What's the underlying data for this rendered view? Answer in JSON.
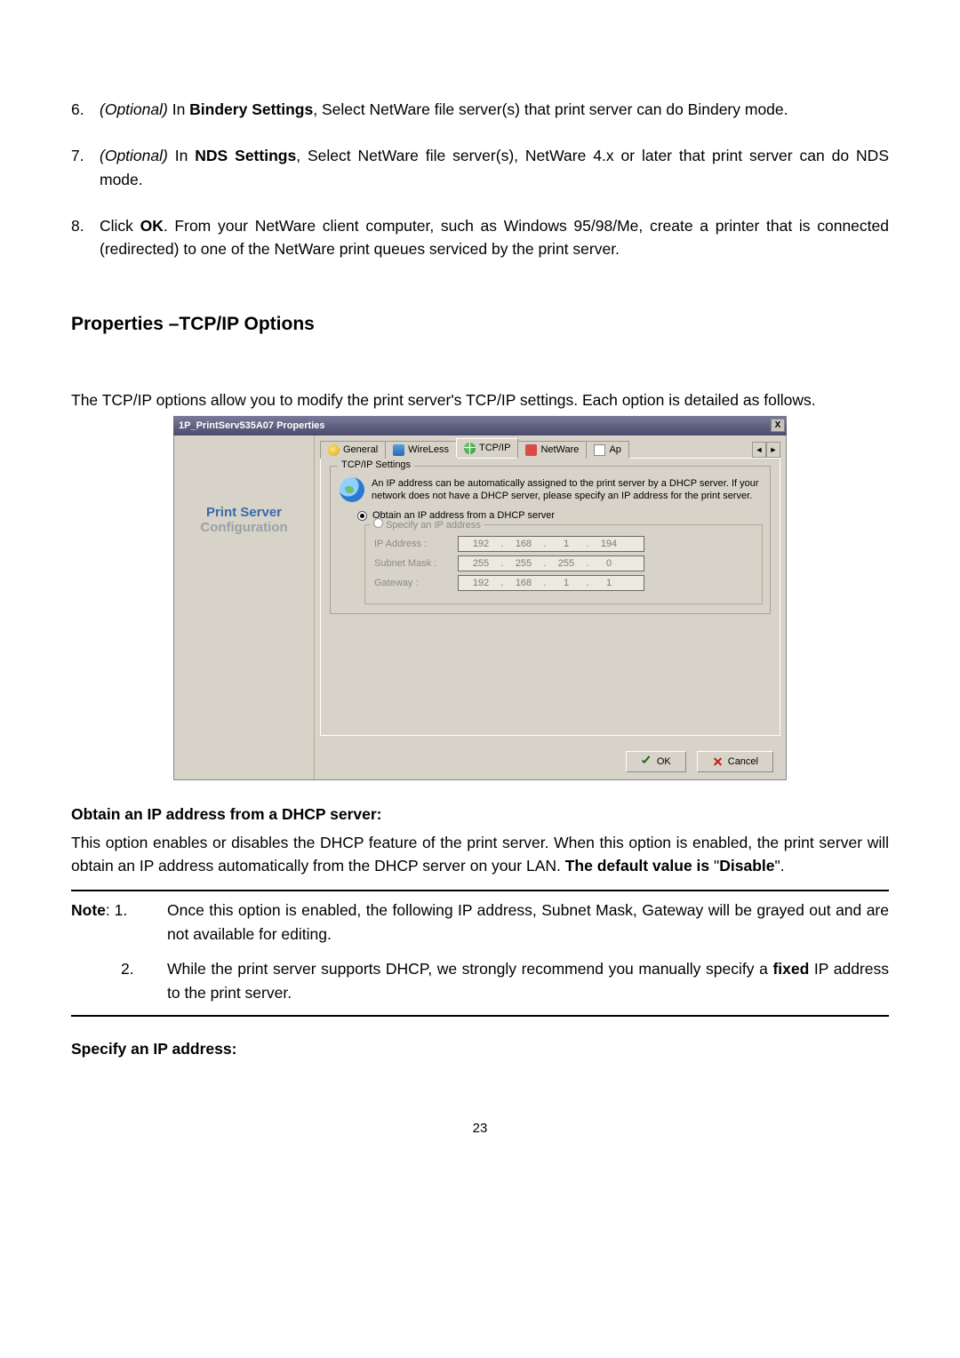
{
  "list_items": [
    {
      "num": "6.",
      "optional": "(Optional) ",
      "in_word": "In ",
      "bold": "Bindery Settings",
      "rest": ", Select NetWare file server(s) that print server can do Bindery mode."
    },
    {
      "num": "7.",
      "optional": "(Optional) ",
      "in_word": "In ",
      "bold": "NDS Settings",
      "rest": ", Select NetWare file server(s), NetWare 4.x or later that print server can do NDS mode."
    },
    {
      "num": "8.",
      "optional": "",
      "in_word": "Click ",
      "bold": "OK",
      "rest": ". From your NetWare client computer, such as Windows 95/98/Me, create a printer that is connected (redirected) to one of the NetWare print queues serviced by the print server."
    }
  ],
  "section_heading": "Properties –TCP/IP Options",
  "intro_para": "The TCP/IP options allow you to modify the print server's TCP/IP settings. Each option is detailed as follows.",
  "dialog": {
    "title": "1P_PrintServ535A07 Properties",
    "close": "X",
    "left": {
      "line1": "Print Server",
      "line2": "Configuration"
    },
    "tabs": {
      "general": "General",
      "wireless": "WireLess",
      "tcpip": "TCP/IP",
      "netware": "NetWare",
      "apple": "Ap",
      "scroll_left": "◄",
      "scroll_right": "►"
    },
    "groupbox_title": "TCP/IP Settings",
    "info_text": "An IP address can be automatically assigned to the print server by a DHCP server. If your network does not have a DHCP server, please specify an IP address for the print server.",
    "radio_dhcp": "Obtain an IP address from a DHCP server",
    "radio_specify": "Specify an IP address",
    "field_ip_label": "IP Address :",
    "field_mask_label": "Subnet Mask :",
    "field_gw_label": "Gateway :",
    "ip": {
      "o1": "192",
      "o2": "168",
      "o3": "1",
      "o4": "194"
    },
    "mask": {
      "o1": "255",
      "o2": "255",
      "o3": "255",
      "o4": "0"
    },
    "gw": {
      "o1": "192",
      "o2": "168",
      "o3": "1",
      "o4": "1"
    },
    "ok": "OK",
    "cancel": "Cancel",
    "dot": "."
  },
  "obtain_heading": "Obtain an IP address from a DHCP server:",
  "obtain_para_pre": "This option enables or disables the DHCP feature of the print server. When this option is enabled, the print server will obtain an IP address automatically from the DHCP server on your LAN.  ",
  "obtain_bold1": "The default value is ",
  "obtain_quote1": "\"",
  "obtain_bold2": "Disable",
  "obtain_quote2": "\".",
  "note_label": "Note",
  "note1_pre": ": 1.",
  "note1_body": "Once this option is enabled, the following IP address, Subnet Mask, Gateway will be grayed out and are not available for editing.",
  "note2_num": "2.",
  "note2_body_pre": "While the print server supports DHCP, we strongly recommend you manually specify a ",
  "note2_bold": "fixed",
  "note2_body_post": " IP address to the print server.",
  "specify_heading": "Specify an IP address:",
  "page_number": "23"
}
